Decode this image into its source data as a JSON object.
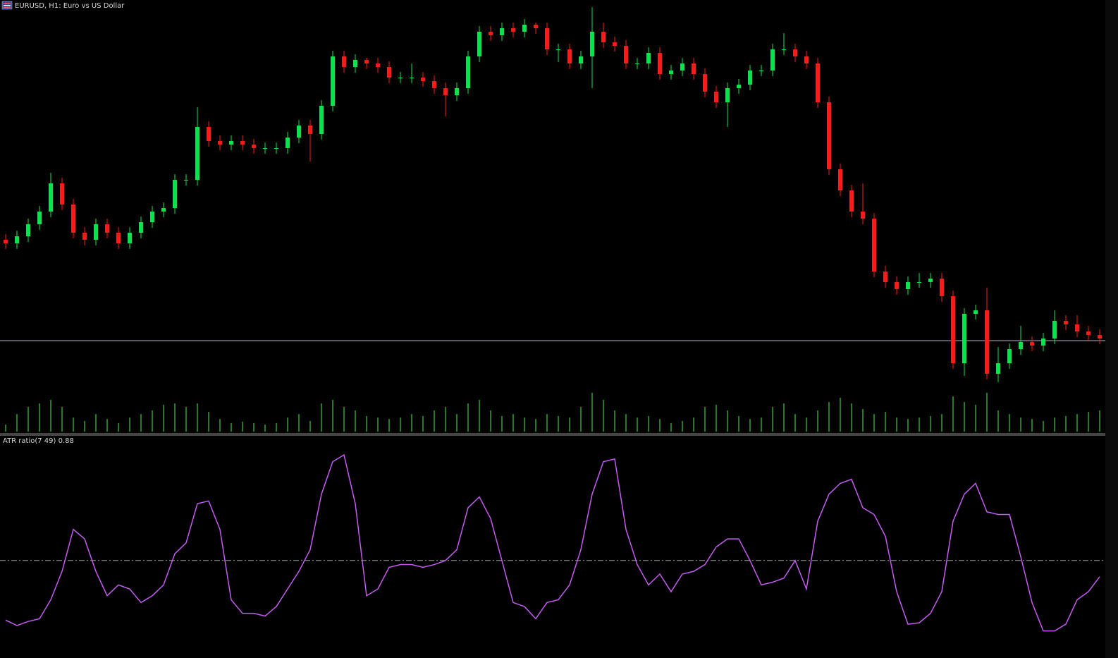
{
  "chart_data": [
    {
      "type": "candlestick",
      "title": "EURUSD, H1:  Euro vs US Dollar",
      "ylim": [
        0,
        540
      ],
      "bull_color": "#00e64d",
      "bear_color": "#ff1a1a",
      "bid_line": 67,
      "bid_color": "#b4b4c8",
      "open": [
        210,
        205,
        215,
        232,
        250,
        290,
        260,
        220,
        210,
        232,
        220,
        205,
        220,
        235,
        250,
        255,
        295,
        295,
        370,
        350,
        345,
        350,
        345,
        340,
        340,
        340,
        355,
        372,
        360,
        400,
        470,
        455,
        465,
        460,
        455,
        440,
        440,
        440,
        435,
        425,
        415,
        425,
        470,
        505,
        500,
        510,
        505,
        515,
        510,
        480,
        480,
        460,
        470,
        505,
        490,
        485,
        460,
        460,
        475,
        445,
        450,
        460,
        445,
        420,
        405,
        425,
        430,
        450,
        450,
        480,
        480,
        470,
        460,
        405,
        310,
        280,
        250,
        240,
        165,
        150,
        140,
        150,
        150,
        155,
        130,
        35,
        105,
        110,
        20,
        35,
        55,
        65,
        60,
        70,
        95,
        90,
        80,
        75
      ],
      "high": [
        218,
        223,
        240,
        258,
        305,
        298,
        268,
        228,
        240,
        240,
        228,
        228,
        243,
        258,
        263,
        303,
        303,
        398,
        378,
        358,
        358,
        358,
        353,
        348,
        348,
        363,
        380,
        380,
        408,
        478,
        478,
        473,
        468,
        468,
        463,
        448,
        460,
        448,
        443,
        433,
        433,
        478,
        513,
        513,
        518,
        518,
        523,
        518,
        518,
        488,
        488,
        478,
        540,
        518,
        498,
        493,
        468,
        483,
        483,
        458,
        468,
        468,
        453,
        428,
        433,
        438,
        458,
        458,
        488,
        503,
        488,
        478,
        468,
        413,
        318,
        288,
        290,
        248,
        173,
        158,
        158,
        163,
        163,
        163,
        138,
        113,
        118,
        142,
        58,
        63,
        88,
        73,
        78,
        110,
        103,
        103,
        88,
        83
      ],
      "low": [
        197,
        197,
        207,
        224,
        242,
        252,
        212,
        202,
        202,
        212,
        197,
        197,
        212,
        227,
        242,
        247,
        287,
        287,
        342,
        337,
        337,
        337,
        332,
        332,
        332,
        332,
        347,
        321,
        352,
        392,
        447,
        447,
        452,
        447,
        432,
        432,
        432,
        427,
        417,
        385,
        407,
        417,
        462,
        492,
        492,
        497,
        497,
        502,
        472,
        462,
        452,
        452,
        425,
        482,
        477,
        452,
        452,
        452,
        437,
        437,
        442,
        437,
        412,
        397,
        370,
        417,
        422,
        442,
        442,
        472,
        462,
        452,
        397,
        302,
        272,
        242,
        232,
        157,
        142,
        132,
        132,
        142,
        142,
        122,
        27,
        17,
        97,
        12,
        8,
        27,
        47,
        52,
        52,
        62,
        82,
        72,
        67,
        62
      ],
      "close": [
        205,
        215,
        232,
        250,
        290,
        260,
        220,
        210,
        232,
        220,
        205,
        220,
        235,
        250,
        255,
        295,
        295,
        370,
        350,
        345,
        350,
        345,
        340,
        340,
        340,
        355,
        372,
        360,
        400,
        470,
        455,
        465,
        460,
        455,
        440,
        440,
        440,
        435,
        425,
        415,
        425,
        470,
        505,
        500,
        510,
        505,
        515,
        510,
        480,
        480,
        460,
        470,
        505,
        490,
        485,
        460,
        460,
        475,
        445,
        450,
        460,
        445,
        420,
        405,
        425,
        430,
        450,
        450,
        480,
        480,
        470,
        460,
        405,
        310,
        280,
        250,
        240,
        165,
        150,
        140,
        150,
        150,
        155,
        130,
        35,
        105,
        110,
        20,
        35,
        55,
        65,
        60,
        70,
        95,
        90,
        80,
        75,
        70
      ],
      "volume": [
        10,
        25,
        35,
        40,
        45,
        35,
        20,
        15,
        25,
        18,
        12,
        20,
        25,
        30,
        38,
        40,
        35,
        40,
        28,
        18,
        12,
        14,
        12,
        10,
        12,
        20,
        25,
        15,
        40,
        45,
        35,
        30,
        22,
        20,
        18,
        20,
        25,
        22,
        30,
        35,
        25,
        40,
        45,
        30,
        22,
        25,
        20,
        18,
        25,
        22,
        20,
        35,
        55,
        45,
        30,
        25,
        20,
        22,
        18,
        12,
        15,
        20,
        35,
        38,
        30,
        22,
        18,
        20,
        35,
        40,
        25,
        20,
        30,
        42,
        48,
        40,
        32,
        25,
        28,
        20,
        18,
        20,
        22,
        25,
        50,
        42,
        38,
        55,
        30,
        25,
        20,
        18,
        15,
        20,
        22,
        25,
        28,
        30
      ],
      "volume_ylim": [
        0,
        60
      ],
      "volume_color": "#2ea82e"
    },
    {
      "type": "line",
      "title": "ATR ratio(7 49) 0.88",
      "ylim": [
        0.4,
        1.9
      ],
      "level": 1,
      "color": "#c45cf0",
      "level_color": "#9a9a9a",
      "values": [
        0.56,
        0.52,
        0.55,
        0.57,
        0.71,
        0.92,
        1.23,
        1.16,
        0.92,
        0.74,
        0.82,
        0.79,
        0.69,
        0.74,
        0.82,
        1.05,
        1.13,
        1.42,
        1.44,
        1.23,
        0.71,
        0.61,
        0.61,
        0.59,
        0.66,
        0.79,
        0.92,
        1.08,
        1.49,
        1.73,
        1.78,
        1.42,
        0.74,
        0.79,
        0.95,
        0.97,
        0.97,
        0.95,
        0.97,
        1.0,
        1.08,
        1.39,
        1.47,
        1.31,
        1.0,
        0.69,
        0.66,
        0.57,
        0.69,
        0.71,
        0.82,
        1.08,
        1.49,
        1.73,
        1.75,
        1.23,
        0.97,
        0.82,
        0.9,
        0.77,
        0.9,
        0.92,
        0.97,
        1.1,
        1.16,
        1.16,
        1.0,
        0.82,
        0.84,
        0.87,
        1.0,
        0.79,
        1.29,
        1.49,
        1.57,
        1.6,
        1.39,
        1.34,
        1.18,
        0.77,
        0.53,
        0.54,
        0.61,
        0.77,
        1.29,
        1.49,
        1.57,
        1.36,
        1.34,
        1.34,
        1.03,
        0.69,
        0.48,
        0.48,
        0.53,
        0.71,
        0.77,
        0.88
      ]
    }
  ]
}
